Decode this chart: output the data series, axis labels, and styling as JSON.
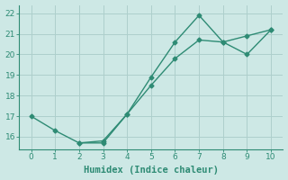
{
  "line1_x": [
    0,
    1,
    2,
    3,
    4,
    5,
    6,
    7,
    8,
    9,
    10
  ],
  "line1_y": [
    17.0,
    16.3,
    15.7,
    15.7,
    17.1,
    18.9,
    20.6,
    21.9,
    20.6,
    20.0,
    21.2
  ],
  "line2_x": [
    2,
    3,
    4,
    5,
    6,
    7,
    8,
    9,
    10
  ],
  "line2_y": [
    15.7,
    15.8,
    17.1,
    18.5,
    19.8,
    20.7,
    20.6,
    20.9,
    21.2
  ],
  "color": "#2e8b74",
  "bg_color": "#cde8e5",
  "grid_color": "#aecfcc",
  "xlabel": "Humidex (Indice chaleur)",
  "ylim": [
    15.4,
    22.4
  ],
  "xlim": [
    -0.5,
    10.5
  ],
  "yticks": [
    16,
    17,
    18,
    19,
    20,
    21,
    22
  ],
  "xticks": [
    0,
    1,
    2,
    3,
    4,
    5,
    6,
    7,
    8,
    9,
    10
  ],
  "marker": "D",
  "markersize": 2.5,
  "linewidth": 1.0,
  "xlabel_fontsize": 7.5
}
